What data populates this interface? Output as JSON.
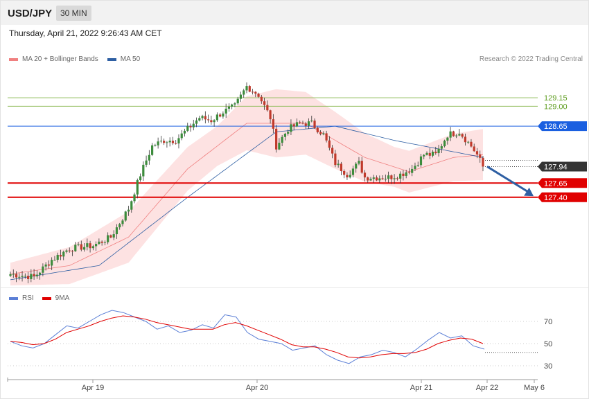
{
  "header": {
    "symbol": "USD/JPY",
    "timeframe": "30 MIN"
  },
  "timestamp": "Thursday, April 21, 2022 9:26:43 AM CET",
  "legend_main": [
    {
      "label": "MA 20 + Bollinger Bands",
      "color": "#f08080"
    },
    {
      "label": "MA 50",
      "color": "#2e5fa3"
    }
  ],
  "credit": "Research © 2022 Trading Central",
  "legend_rsi": [
    {
      "label": "RSI",
      "color": "#5b7fd6"
    },
    {
      "label": "9MA",
      "color": "#e00000"
    }
  ],
  "colors": {
    "up": "#3c8c3c",
    "down": "#c0392b",
    "band": "#fde2e2",
    "ma20": "#f08080",
    "ma50": "#2e5fa3",
    "resistance": "#8fbc5a",
    "support": "#e00000",
    "pivot": "#1a5fe0",
    "arrow": "#2e5fa3"
  },
  "chart_data": [
    {
      "type": "candlestick",
      "x_ticks": [
        "Apr 19",
        "Apr 20",
        "Apr 21",
        "Apr 22",
        "May 6"
      ],
      "ylim": [
        125.9,
        129.65
      ],
      "levels": [
        {
          "value": 129.15,
          "label": "129.15",
          "kind": "resistance"
        },
        {
          "value": 129.0,
          "label": "129.00",
          "kind": "resistance"
        },
        {
          "value": 128.65,
          "label": "128.65",
          "kind": "pivot"
        },
        {
          "value": 127.94,
          "label": "127.94",
          "kind": "last"
        },
        {
          "value": 127.65,
          "label": "127.65",
          "kind": "support"
        },
        {
          "value": 127.4,
          "label": "127.40",
          "kind": "support"
        }
      ],
      "key_points": [
        [
          0,
          126.05
        ],
        [
          8,
          126.0
        ],
        [
          14,
          126.3
        ],
        [
          20,
          126.5
        ],
        [
          28,
          126.55
        ],
        [
          34,
          126.7
        ],
        [
          40,
          127.2
        ],
        [
          44,
          127.8
        ],
        [
          48,
          128.3
        ],
        [
          52,
          128.4
        ],
        [
          56,
          128.4
        ],
        [
          60,
          128.6
        ],
        [
          64,
          128.8
        ],
        [
          68,
          128.75
        ],
        [
          72,
          128.9
        ],
        [
          76,
          129.0
        ],
        [
          80,
          129.35
        ],
        [
          84,
          129.2
        ],
        [
          88,
          128.8
        ],
        [
          90,
          128.3
        ],
        [
          94,
          128.6
        ],
        [
          98,
          128.7
        ],
        [
          102,
          128.7
        ],
        [
          106,
          128.5
        ],
        [
          110,
          128.0
        ],
        [
          114,
          127.8
        ],
        [
          118,
          128.0
        ],
        [
          120,
          127.75
        ],
        [
          124,
          127.75
        ],
        [
          128,
          127.75
        ],
        [
          132,
          127.8
        ],
        [
          136,
          127.9
        ],
        [
          140,
          128.15
        ],
        [
          144,
          128.15
        ],
        [
          148,
          128.5
        ],
        [
          152,
          128.55
        ],
        [
          156,
          128.3
        ],
        [
          158,
          128.15
        ],
        [
          160,
          127.94
        ]
      ],
      "ma20_key_points": [
        [
          0,
          126.05
        ],
        [
          20,
          126.2
        ],
        [
          40,
          126.7
        ],
        [
          60,
          127.9
        ],
        [
          80,
          128.7
        ],
        [
          100,
          128.7
        ],
        [
          120,
          128.1
        ],
        [
          135,
          127.85
        ],
        [
          150,
          128.1
        ],
        [
          160,
          128.15
        ]
      ],
      "ma50_key_points": [
        [
          0,
          125.95
        ],
        [
          30,
          126.2
        ],
        [
          60,
          127.4
        ],
        [
          90,
          128.55
        ],
        [
          110,
          128.65
        ],
        [
          130,
          128.4
        ],
        [
          150,
          128.2
        ],
        [
          160,
          128.1
        ]
      ],
      "band_half_width": [
        [
          0,
          0.2
        ],
        [
          40,
          0.45
        ],
        [
          70,
          0.35
        ],
        [
          90,
          0.6
        ],
        [
          110,
          0.5
        ],
        [
          130,
          0.35
        ],
        [
          160,
          0.45
        ]
      ]
    },
    {
      "type": "line",
      "title": "RSI",
      "ylim": [
        20,
        85
      ],
      "y_ticks": [
        70,
        50,
        30
      ],
      "series": [
        {
          "name": "RSI",
          "values": [
            52,
            48,
            46,
            50,
            58,
            66,
            64,
            70,
            76,
            80,
            78,
            74,
            70,
            63,
            66,
            60,
            62,
            67,
            64,
            76,
            74,
            60,
            54,
            52,
            50,
            44,
            46,
            48,
            40,
            35,
            32,
            38,
            40,
            44,
            42,
            38,
            45,
            53,
            60,
            55,
            57,
            48,
            45
          ]
        },
        {
          "name": "9MA",
          "values": [
            52,
            51,
            49,
            50,
            54,
            60,
            63,
            66,
            70,
            73,
            75,
            74,
            72,
            69,
            67,
            65,
            63,
            63,
            63,
            67,
            69,
            66,
            62,
            58,
            54,
            49,
            47,
            47,
            45,
            42,
            38,
            37,
            38,
            40,
            41,
            41,
            42,
            45,
            50,
            53,
            55,
            54,
            50
          ]
        }
      ]
    }
  ]
}
